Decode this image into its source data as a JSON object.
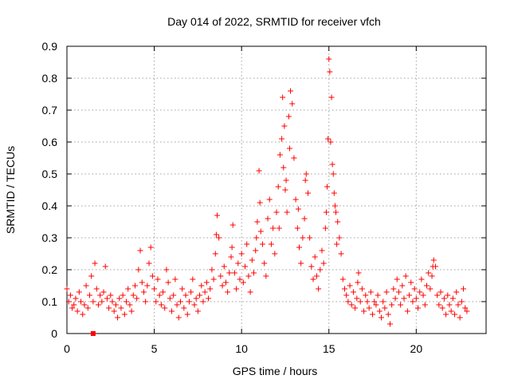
{
  "chart_data": {
    "type": "scatter",
    "title": "Day 014 of 2022, SRMTID for receiver vfch",
    "xlabel": "GPS time / hours",
    "ylabel": "SRMTID / TECUs",
    "xlim": [
      0,
      24
    ],
    "ylim": [
      0,
      0.9
    ],
    "xticks": [
      0,
      5,
      10,
      15,
      20
    ],
    "yticks": [
      0,
      0.1,
      0.2,
      0.3,
      0.4,
      0.5,
      0.6,
      0.7,
      0.8,
      0.9
    ],
    "xtick_labels": [
      "0",
      "5",
      "10",
      "15",
      "20"
    ],
    "ytick_labels": [
      "0",
      "0.1",
      "0.2",
      "0.3",
      "0.4",
      "0.5",
      "0.6",
      "0.7",
      "0.8",
      "0.9"
    ],
    "grid": true,
    "marker": "+",
    "series": [
      {
        "name": "SRMTID",
        "color": "#ff0000",
        "points": [
          [
            0.0,
            0.14
          ],
          [
            0.1,
            0.1
          ],
          [
            0.2,
            0.12
          ],
          [
            0.3,
            0.08
          ],
          [
            0.4,
            0.09
          ],
          [
            0.5,
            0.11
          ],
          [
            0.6,
            0.07
          ],
          [
            0.7,
            0.13
          ],
          [
            0.8,
            0.1
          ],
          [
            0.9,
            0.06
          ],
          [
            1.0,
            0.09
          ],
          [
            1.1,
            0.15
          ],
          [
            1.2,
            0.08
          ],
          [
            1.3,
            0.12
          ],
          [
            1.4,
            0.18
          ],
          [
            1.5,
            0.1
          ],
          [
            1.6,
            0.22
          ],
          [
            1.7,
            0.14
          ],
          [
            1.8,
            0.09
          ],
          [
            1.9,
            0.12
          ],
          [
            2.0,
            0.1
          ],
          [
            2.1,
            0.13
          ],
          [
            2.2,
            0.21
          ],
          [
            2.3,
            0.11
          ],
          [
            2.4,
            0.08
          ],
          [
            2.5,
            0.12
          ],
          [
            2.6,
            0.1
          ],
          [
            2.7,
            0.07
          ],
          [
            2.8,
            0.09
          ],
          [
            2.9,
            0.05
          ],
          [
            3.0,
            0.11
          ],
          [
            3.1,
            0.08
          ],
          [
            3.2,
            0.12
          ],
          [
            3.3,
            0.06
          ],
          [
            3.4,
            0.1
          ],
          [
            3.5,
            0.14
          ],
          [
            3.6,
            0.09
          ],
          [
            3.7,
            0.07
          ],
          [
            3.8,
            0.12
          ],
          [
            3.9,
            0.15
          ],
          [
            4.0,
            0.11
          ],
          [
            4.1,
            0.2
          ],
          [
            4.2,
            0.26
          ],
          [
            4.3,
            0.16
          ],
          [
            4.4,
            0.13
          ],
          [
            4.5,
            0.1
          ],
          [
            4.6,
            0.15
          ],
          [
            4.7,
            0.22
          ],
          [
            4.8,
            0.27
          ],
          [
            4.9,
            0.18
          ],
          [
            5.0,
            0.14
          ],
          [
            5.1,
            0.1
          ],
          [
            5.2,
            0.17
          ],
          [
            5.3,
            0.12
          ],
          [
            5.4,
            0.09
          ],
          [
            5.5,
            0.13
          ],
          [
            5.6,
            0.08
          ],
          [
            5.7,
            0.2
          ],
          [
            5.8,
            0.16
          ],
          [
            5.9,
            0.11
          ],
          [
            6.0,
            0.07
          ],
          [
            6.1,
            0.12
          ],
          [
            6.2,
            0.17
          ],
          [
            6.3,
            0.09
          ],
          [
            6.4,
            0.05
          ],
          [
            6.5,
            0.1
          ],
          [
            6.6,
            0.14
          ],
          [
            6.7,
            0.08
          ],
          [
            6.8,
            0.12
          ],
          [
            6.9,
            0.06
          ],
          [
            7.0,
            0.1
          ],
          [
            7.1,
            0.13
          ],
          [
            7.2,
            0.17
          ],
          [
            7.3,
            0.09
          ],
          [
            7.4,
            0.11
          ],
          [
            7.5,
            0.07
          ],
          [
            7.6,
            0.12
          ],
          [
            7.7,
            0.15
          ],
          [
            7.8,
            0.1
          ],
          [
            7.9,
            0.13
          ],
          [
            8.0,
            0.16
          ],
          [
            8.1,
            0.11
          ],
          [
            8.2,
            0.14
          ],
          [
            8.3,
            0.2
          ],
          [
            8.4,
            0.17
          ],
          [
            8.5,
            0.25
          ],
          [
            8.6,
            0.37
          ],
          [
            8.7,
            0.3
          ],
          [
            8.8,
            0.18
          ],
          [
            8.9,
            0.15
          ],
          [
            9.0,
            0.21
          ],
          [
            9.1,
            0.16
          ],
          [
            9.2,
            0.13
          ],
          [
            9.3,
            0.19
          ],
          [
            9.4,
            0.24
          ],
          [
            9.5,
            0.34
          ],
          [
            9.6,
            0.19
          ],
          [
            9.7,
            0.14
          ],
          [
            9.8,
            0.22
          ],
          [
            9.9,
            0.17
          ],
          [
            10.0,
            0.25
          ],
          [
            10.1,
            0.16
          ],
          [
            10.2,
            0.21
          ],
          [
            10.3,
            0.28
          ],
          [
            10.4,
            0.18
          ],
          [
            10.5,
            0.13
          ],
          [
            10.6,
            0.23
          ],
          [
            10.7,
            0.19
          ],
          [
            10.8,
            0.26
          ],
          [
            10.9,
            0.35
          ],
          [
            11.0,
            0.51
          ],
          [
            11.1,
            0.32
          ],
          [
            11.2,
            0.28
          ],
          [
            11.3,
            0.22
          ],
          [
            11.4,
            0.18
          ],
          [
            11.5,
            0.36
          ],
          [
            11.6,
            0.42
          ],
          [
            11.7,
            0.28
          ],
          [
            11.8,
            0.33
          ],
          [
            11.9,
            0.25
          ],
          [
            12.0,
            0.38
          ],
          [
            12.1,
            0.46
          ],
          [
            12.2,
            0.56
          ],
          [
            12.3,
            0.61
          ],
          [
            12.4,
            0.52
          ],
          [
            12.5,
            0.45
          ],
          [
            12.6,
            0.38
          ],
          [
            12.7,
            0.68
          ],
          [
            12.8,
            0.76
          ],
          [
            12.9,
            0.72
          ],
          [
            13.0,
            0.55
          ],
          [
            13.1,
            0.42
          ],
          [
            13.2,
            0.33
          ],
          [
            13.3,
            0.27
          ],
          [
            13.4,
            0.22
          ],
          [
            13.5,
            0.3
          ],
          [
            13.6,
            0.36
          ],
          [
            13.7,
            0.5
          ],
          [
            13.8,
            0.44
          ],
          [
            13.9,
            0.3
          ],
          [
            14.0,
            0.21
          ],
          [
            14.1,
            0.17
          ],
          [
            14.2,
            0.24
          ],
          [
            14.3,
            0.18
          ],
          [
            14.4,
            0.14
          ],
          [
            14.5,
            0.2
          ],
          [
            14.6,
            0.26
          ],
          [
            14.7,
            0.22
          ],
          [
            14.8,
            0.33
          ],
          [
            14.9,
            0.46
          ],
          [
            15.0,
            0.86
          ],
          [
            15.1,
            0.6
          ],
          [
            15.2,
            0.53
          ],
          [
            15.3,
            0.44
          ],
          [
            15.4,
            0.38
          ],
          [
            15.5,
            0.35
          ],
          [
            15.6,
            0.3
          ],
          [
            15.7,
            0.25
          ],
          [
            15.8,
            0.17
          ],
          [
            15.9,
            0.14
          ],
          [
            16.0,
            0.12
          ],
          [
            16.1,
            0.1
          ],
          [
            16.2,
            0.15
          ],
          [
            16.3,
            0.09
          ],
          [
            16.4,
            0.13
          ],
          [
            16.5,
            0.08
          ],
          [
            16.6,
            0.11
          ],
          [
            16.7,
            0.19
          ],
          [
            16.8,
            0.1
          ],
          [
            16.9,
            0.14
          ],
          [
            17.0,
            0.07
          ],
          [
            17.1,
            0.12
          ],
          [
            17.2,
            0.1
          ],
          [
            17.3,
            0.08
          ],
          [
            17.4,
            0.13
          ],
          [
            17.5,
            0.06
          ],
          [
            17.6,
            0.1
          ],
          [
            17.7,
            0.09
          ],
          [
            17.8,
            0.12
          ],
          [
            17.9,
            0.07
          ],
          [
            18.0,
            0.05
          ],
          [
            18.1,
            0.1
          ],
          [
            18.2,
            0.08
          ],
          [
            18.3,
            0.13
          ],
          [
            18.4,
            0.06
          ],
          [
            18.5,
            0.03
          ],
          [
            18.6,
            0.09
          ],
          [
            18.7,
            0.14
          ],
          [
            18.8,
            0.11
          ],
          [
            18.9,
            0.17
          ],
          [
            19.0,
            0.13
          ],
          [
            19.1,
            0.09
          ],
          [
            19.2,
            0.15
          ],
          [
            19.3,
            0.11
          ],
          [
            19.4,
            0.18
          ],
          [
            19.5,
            0.07
          ],
          [
            19.6,
            0.12
          ],
          [
            19.7,
            0.16
          ],
          [
            19.8,
            0.1
          ],
          [
            19.9,
            0.14
          ],
          [
            20.0,
            0.11
          ],
          [
            20.1,
            0.08
          ],
          [
            20.2,
            0.13
          ],
          [
            20.3,
            0.17
          ],
          [
            20.4,
            0.12
          ],
          [
            20.5,
            0.09
          ],
          [
            20.6,
            0.15
          ],
          [
            20.7,
            0.19
          ],
          [
            20.8,
            0.14
          ],
          [
            20.9,
            0.18
          ],
          [
            21.0,
            0.23
          ],
          [
            21.1,
            0.21
          ],
          [
            21.2,
            0.12
          ],
          [
            21.3,
            0.09
          ],
          [
            21.4,
            0.13
          ],
          [
            21.5,
            0.08
          ],
          [
            21.6,
            0.11
          ],
          [
            21.7,
            0.06
          ],
          [
            21.8,
            0.12
          ],
          [
            21.9,
            0.09
          ],
          [
            22.0,
            0.07
          ],
          [
            22.1,
            0.11
          ],
          [
            22.2,
            0.06
          ],
          [
            22.3,
            0.13
          ],
          [
            22.4,
            0.09
          ],
          [
            22.5,
            0.05
          ],
          [
            22.6,
            0.1
          ],
          [
            22.7,
            0.14
          ],
          [
            22.8,
            0.08
          ],
          [
            22.9,
            0.07
          ],
          [
            12.35,
            0.74
          ],
          [
            12.75,
            0.58
          ],
          [
            13.65,
            0.48
          ],
          [
            15.05,
            0.82
          ],
          [
            15.15,
            0.74
          ],
          [
            15.25,
            0.5
          ],
          [
            11.05,
            0.41
          ],
          [
            12.45,
            0.65
          ],
          [
            15.35,
            0.4
          ],
          [
            14.95,
            0.61
          ],
          [
            8.55,
            0.31
          ],
          [
            9.45,
            0.27
          ],
          [
            10.85,
            0.3
          ],
          [
            12.15,
            0.33
          ],
          [
            12.55,
            0.48
          ],
          [
            13.25,
            0.39
          ],
          [
            14.85,
            0.38
          ],
          [
            15.45,
            0.28
          ],
          [
            16.65,
            0.16
          ],
          [
            20.95,
            0.21
          ]
        ]
      }
    ],
    "extra_markers": [
      {
        "shape": "square",
        "x": 1.5,
        "y": 0.0,
        "color": "#ff0000"
      }
    ]
  }
}
